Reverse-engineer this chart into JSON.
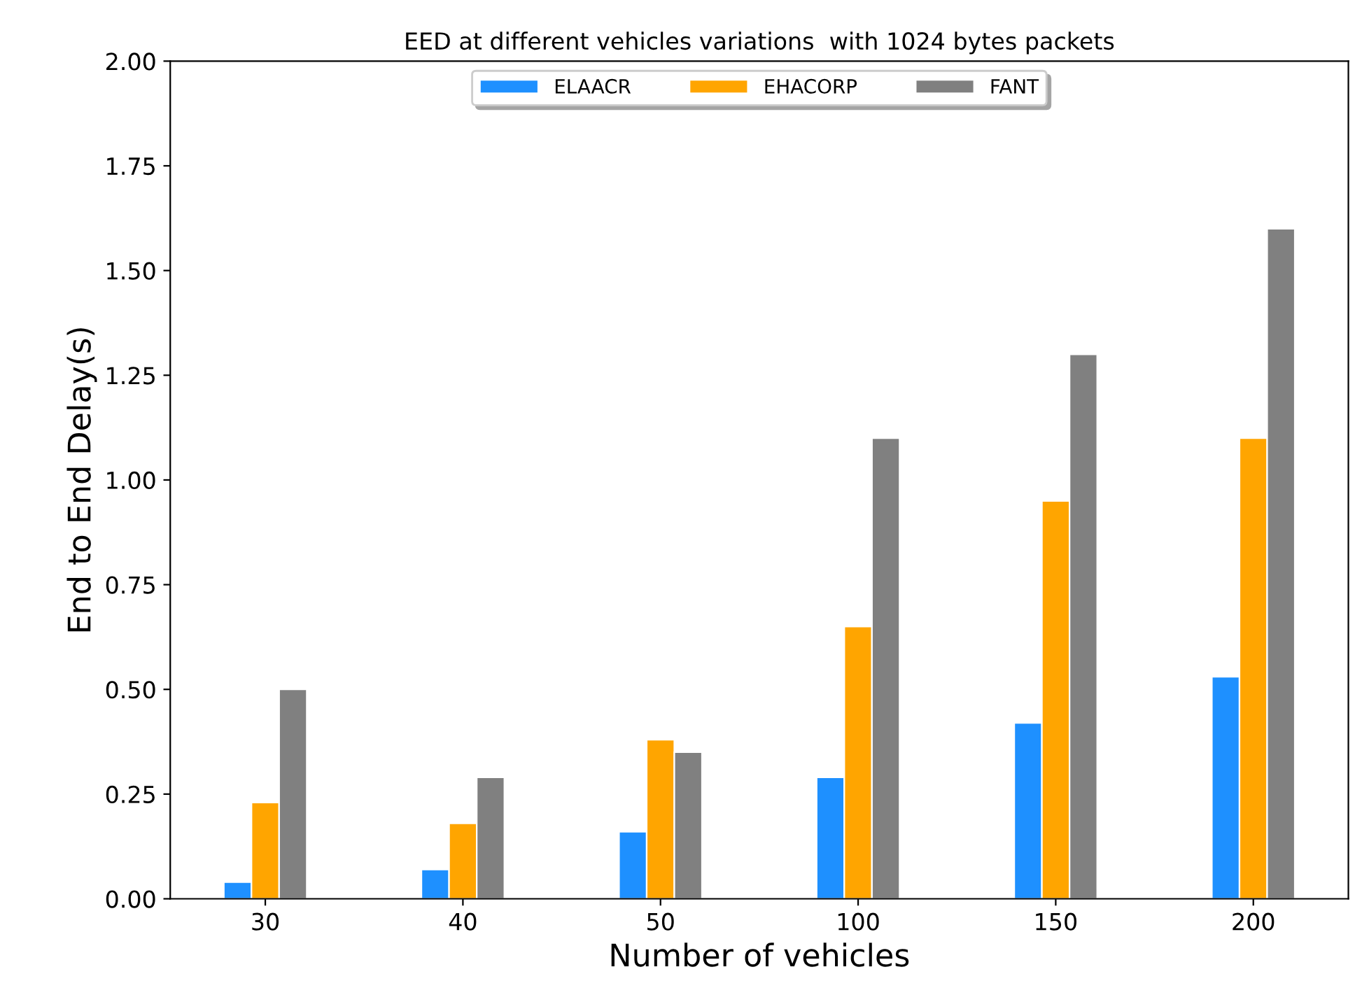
{
  "chart_data": {
    "type": "bar",
    "title": "EED at different vehicles variations  with 1024 bytes packets",
    "xlabel": "Number of vehicles",
    "ylabel": "End to End Delay(s)",
    "categories": [
      "30",
      "40",
      "50",
      "100",
      "150",
      "200"
    ],
    "series": [
      {
        "name": "ELAACR",
        "color": "#1e90ff",
        "values": [
          0.04,
          0.07,
          0.16,
          0.29,
          0.42,
          0.53
        ]
      },
      {
        "name": "EHACORP",
        "color": "#ffa500",
        "values": [
          0.23,
          0.18,
          0.38,
          0.65,
          0.95,
          1.1
        ]
      },
      {
        "name": "FANT",
        "color": "#808080",
        "values": [
          0.5,
          0.29,
          0.35,
          1.1,
          1.3,
          1.6
        ]
      }
    ],
    "ylim": [
      0,
      2.0
    ],
    "yticks": [
      {
        "value": 0,
        "label": "0.00"
      },
      {
        "value": 0.25,
        "label": "0.25"
      },
      {
        "value": 0.5,
        "label": "0.50"
      },
      {
        "value": 0.75,
        "label": "0.75"
      },
      {
        "value": 1.0,
        "label": "1.00"
      },
      {
        "value": 1.25,
        "label": "1.25"
      },
      {
        "value": 1.5,
        "label": "1.50"
      },
      {
        "value": 1.75,
        "label": "1.75"
      },
      {
        "value": 2.0,
        "label": "2.00"
      }
    ],
    "legend": "top",
    "grid": false
  }
}
